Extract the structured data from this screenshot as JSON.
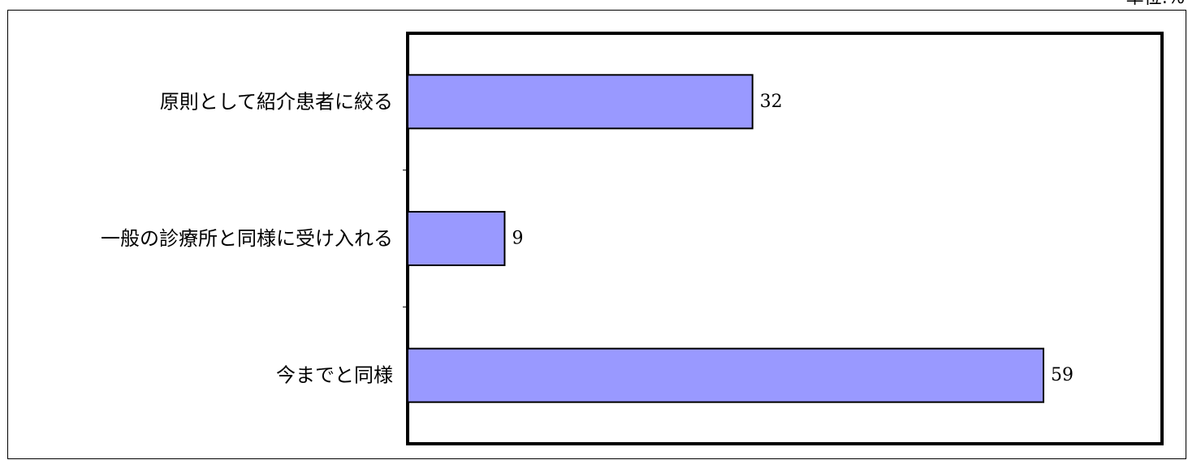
{
  "unit_note": "単位:%",
  "chart_data": {
    "type": "bar",
    "orientation": "horizontal",
    "categories": [
      "原則として紹介患者に絞る",
      "一般の診療所と同様に受け入れる",
      "今までと同様"
    ],
    "values": [
      32,
      9,
      59
    ],
    "xlim": [
      0,
      70
    ],
    "bar_color": "#9999ff",
    "grid": false,
    "legend": "none",
    "title": "",
    "xlabel": "",
    "ylabel": ""
  }
}
